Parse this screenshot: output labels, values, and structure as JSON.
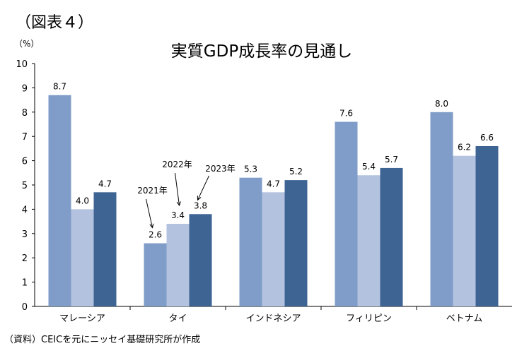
{
  "figure_label": "（図表４）",
  "source_note": "（資料）CEICを元にニッセイ基礎研究所が作成",
  "chart_data": {
    "type": "bar",
    "title": "実質GDP成長率の見通し",
    "ylabel": "（%）",
    "xlabel": "",
    "ylim": [
      0,
      10
    ],
    "yticks": [
      0,
      1,
      2,
      3,
      4,
      5,
      6,
      7,
      8,
      9,
      10
    ],
    "grid": false,
    "categories": [
      "マレーシア",
      "タイ",
      "インドネシア",
      "フィリピン",
      "ベトナム"
    ],
    "series": [
      {
        "name": "2021年",
        "values": [
          8.7,
          2.6,
          5.3,
          7.6,
          8.0
        ],
        "color": "#7f9dc8"
      },
      {
        "name": "2022年",
        "values": [
          4.0,
          3.4,
          4.7,
          5.4,
          6.2
        ],
        "color": "#b3c2df"
      },
      {
        "name": "2023年",
        "values": [
          4.7,
          3.8,
          5.2,
          5.7,
          6.6
        ],
        "color": "#3e6494"
      }
    ],
    "data_labels": [
      [
        "8.7",
        "2.6",
        "5.3",
        "7.6",
        "8.0"
      ],
      [
        "4.0",
        "3.4",
        "4.7",
        "5.4",
        "6.2"
      ],
      [
        "4.7",
        "3.8",
        "5.2",
        "5.7",
        "6.6"
      ]
    ],
    "annotations": [
      {
        "text": "2021年",
        "points_to_series": 0,
        "category": "タイ"
      },
      {
        "text": "2022年",
        "points_to_series": 1,
        "category": "タイ"
      },
      {
        "text": "2023年",
        "points_to_series": 2,
        "category": "タイ"
      }
    ]
  }
}
